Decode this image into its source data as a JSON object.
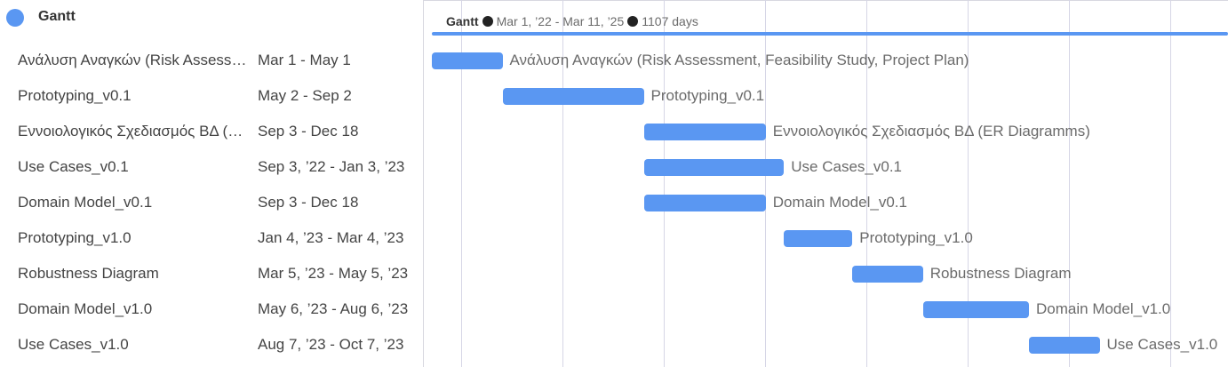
{
  "project": {
    "title": "Gantt",
    "color": "#5a97f2"
  },
  "summary": {
    "name": "Gantt",
    "range": "Mar 1, ’22 - Mar 11, ’25",
    "duration": "1107 days"
  },
  "tasks": [
    {
      "name": "Ανάλυση Αναγκών (Risk Assessment, Feasibility Study, Project Plan)",
      "dates": "Mar 1 - May 1",
      "bar_label": "Ανάλυση Αναγκών (Risk Assessment, Feasibility Study, Project Plan)",
      "start": "2022-03-01",
      "end": "2022-05-01"
    },
    {
      "name": "Prototyping_v0.1",
      "dates": "May 2 - Sep 2",
      "bar_label": "Prototyping_v0.1",
      "start": "2022-05-02",
      "end": "2022-09-02"
    },
    {
      "name": "Εννοιολογικός Σχεδιασμός ΒΔ (ER Diagramms)",
      "dates": "Sep 3 - Dec 18",
      "bar_label": "Εννοιολογικός Σχεδιασμός ΒΔ (ER Diagramms)",
      "start": "2022-09-03",
      "end": "2022-12-18"
    },
    {
      "name": "Use Cases_v0.1",
      "dates": "Sep 3, ’22 - Jan 3, ’23",
      "bar_label": "Use Cases_v0.1",
      "start": "2022-09-03",
      "end": "2023-01-03"
    },
    {
      "name": "Domain Model_v0.1",
      "dates": "Sep 3 - Dec 18",
      "bar_label": "Domain Model_v0.1",
      "start": "2022-09-03",
      "end": "2022-12-18"
    },
    {
      "name": "Prototyping_v1.0",
      "dates": "Jan 4, ’23 - Mar 4, ’23",
      "bar_label": "Prototyping_v1.0",
      "start": "2023-01-04",
      "end": "2023-03-04"
    },
    {
      "name": "Robustness Diagram",
      "dates": "Mar 5, ’23 - May 5, ’23",
      "bar_label": "Robustness Diagram",
      "start": "2023-03-05",
      "end": "2023-05-05"
    },
    {
      "name": "Domain Model_v1.0",
      "dates": "May 6, ’23 - Aug 6, ’23",
      "bar_label": "Domain Model_v1.0",
      "start": "2023-05-06",
      "end": "2023-08-06"
    },
    {
      "name": "Use Cases_v1.0",
      "dates": "Aug 7, ’23 - Oct 7, ’23",
      "bar_label": "Use Cases_v1.0",
      "start": "2023-08-07",
      "end": "2023-10-07"
    }
  ]
}
